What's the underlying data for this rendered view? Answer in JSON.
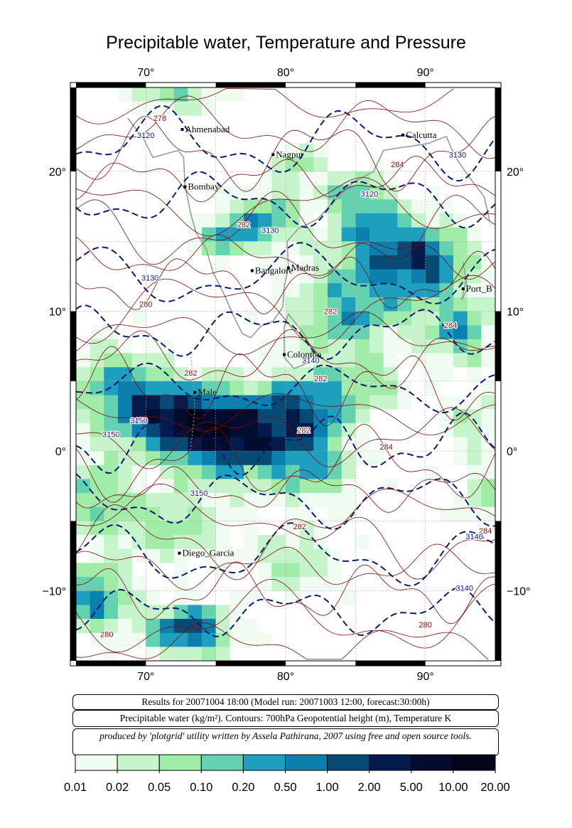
{
  "title": "Precipitable water, Temperature and Pressure",
  "map": {
    "lon_ticks": [
      "70°",
      "80°",
      "90°"
    ],
    "lat_ticks": [
      "20°",
      "10°",
      "0°",
      "−10°"
    ],
    "cities": [
      {
        "name": "Ahmenabad",
        "lon": 72.6,
        "lat": 23.0
      },
      {
        "name": "Calcutta",
        "lon": 88.4,
        "lat": 22.6
      },
      {
        "name": "Nagpur",
        "lon": 79.1,
        "lat": 21.2
      },
      {
        "name": "Bombay",
        "lon": 72.8,
        "lat": 18.9
      },
      {
        "name": "Madras",
        "lon": 80.2,
        "lat": 13.1
      },
      {
        "name": "Bangalore",
        "lon": 77.6,
        "lat": 12.9
      },
      {
        "name": "Port_B",
        "lon": 92.7,
        "lat": 11.6
      },
      {
        "name": "Colombo",
        "lon": 79.9,
        "lat": 6.9
      },
      {
        "name": "Male",
        "lon": 73.5,
        "lat": 4.2
      },
      {
        "name": "Diego_Garcia",
        "lon": 72.4,
        "lat": -7.3
      }
    ],
    "contour_labels": [
      {
        "text": "278",
        "lon": 71.0,
        "lat": 23.6,
        "kind": "temp"
      },
      {
        "text": "3120",
        "lon": 70.0,
        "lat": 22.4,
        "kind": "height"
      },
      {
        "text": "282",
        "lon": 77.0,
        "lat": 16.0,
        "kind": "temp"
      },
      {
        "text": "3130",
        "lon": 78.9,
        "lat": 15.6,
        "kind": "height"
      },
      {
        "text": "3120",
        "lon": 86.0,
        "lat": 18.2,
        "kind": "height"
      },
      {
        "text": "284",
        "lon": 88.0,
        "lat": 20.3,
        "kind": "temp"
      },
      {
        "text": "3130",
        "lon": 92.3,
        "lat": 21.0,
        "kind": "height"
      },
      {
        "text": "3130",
        "lon": 70.3,
        "lat": 12.2,
        "kind": "height"
      },
      {
        "text": "280",
        "lon": 70.0,
        "lat": 10.3,
        "kind": "temp"
      },
      {
        "text": "282",
        "lon": 83.2,
        "lat": 9.8,
        "kind": "temp"
      },
      {
        "text": "284",
        "lon": 91.8,
        "lat": 8.8,
        "kind": "temp"
      },
      {
        "text": "3140",
        "lon": 81.8,
        "lat": 6.3,
        "kind": "height"
      },
      {
        "text": "282",
        "lon": 73.2,
        "lat": 5.4,
        "kind": "temp"
      },
      {
        "text": "282",
        "lon": 82.5,
        "lat": 5.0,
        "kind": "temp"
      },
      {
        "text": "3150",
        "lon": 69.5,
        "lat": 2.0,
        "kind": "height"
      },
      {
        "text": "3150",
        "lon": 67.5,
        "lat": 1.0,
        "kind": "height"
      },
      {
        "text": "282",
        "lon": 81.3,
        "lat": 1.3,
        "kind": "temp"
      },
      {
        "text": "284",
        "lon": 87.2,
        "lat": 0.1,
        "kind": "temp"
      },
      {
        "text": "3150",
        "lon": 73.8,
        "lat": -3.2,
        "kind": "height"
      },
      {
        "text": "282",
        "lon": 81.0,
        "lat": -5.6,
        "kind": "temp"
      },
      {
        "text": "284",
        "lon": 94.3,
        "lat": -5.9,
        "kind": "temp"
      },
      {
        "text": "3140",
        "lon": 93.5,
        "lat": -6.3,
        "kind": "height"
      },
      {
        "text": "3140",
        "lon": 92.8,
        "lat": -10.0,
        "kind": "height"
      },
      {
        "text": "280",
        "lon": 90.0,
        "lat": -12.6,
        "kind": "temp"
      },
      {
        "text": "280",
        "lon": 67.2,
        "lat": -13.3,
        "kind": "temp"
      }
    ],
    "height_contour_color": "#0b1a6e",
    "temperature_contour_color": "#7a0b0b",
    "coastline_color": "#9a9a9a"
  },
  "info": {
    "line1": "Results for 20071004 18:00 (Model run: 20071003 12:00, forecast:30:00h)",
    "line2": "Precipitable water (kg/m²).  Contours: 700hPa Geopotential height (m), Temperature K",
    "line3": "produced by 'plotgrid' utility written by Assela Pathirana, 2007 using free and open source tools."
  },
  "colorbar": {
    "labels": [
      "0.01",
      "0.02",
      "0.05",
      "0.10",
      "0.20",
      "0.50",
      "1.00",
      "2.00",
      "5.00",
      "10.00",
      "20.00"
    ],
    "colors": [
      "#f0fcf2",
      "#c6f5cb",
      "#a1eca8",
      "#64d1b0",
      "#1f9fc0",
      "#0b7fae",
      "#064b75",
      "#031a4a",
      "#020c2e",
      "#010517"
    ]
  }
}
